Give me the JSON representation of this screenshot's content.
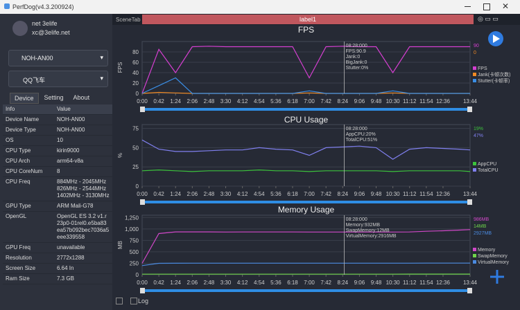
{
  "window": {
    "title": "PerfDog(v4.3.200924)"
  },
  "user": {
    "name": "net 3elife",
    "email": "xc@3elife.net"
  },
  "device": "NOH-AN00",
  "app": "QQ飞车",
  "tabs": [
    "Device",
    "Setting",
    "About"
  ],
  "table": {
    "header": [
      "Info",
      "Value"
    ],
    "rows": [
      [
        "Device Name",
        "NOH-AN00"
      ],
      [
        "Device Type",
        "NOH-AN00"
      ],
      [
        "OS",
        "10"
      ],
      [
        "CPU Type",
        "kirin9000"
      ],
      [
        "CPU Arch",
        "arm64-v8a"
      ],
      [
        "CPU CoreNum",
        "8"
      ],
      [
        "CPU Freq",
        "884MHz - 2045MHz 826MHz - 2544MHz 1402MHz - 3130MHz"
      ],
      [
        "GPU Type",
        "ARM Mali-G78"
      ],
      [
        "OpenGL",
        "OpenGL ES 3.2 v1.r23p0-01rel0.e5ba83ea57b092bec7036a5eee339558"
      ],
      [
        "GPU Freq",
        "unavailable"
      ],
      [
        "Resolution",
        "2772x1288"
      ],
      [
        "Screen Size",
        "6.64 In"
      ],
      [
        "Ram Size",
        "7.3 GB"
      ]
    ]
  },
  "scene": {
    "tab": "SceneTab",
    "label": "label1"
  },
  "log": "Log",
  "chart_data": [
    {
      "type": "line",
      "title": "FPS",
      "y_label": "FPS",
      "x": [
        0,
        42,
        84,
        126,
        168,
        210,
        252,
        294,
        336,
        378,
        420,
        462,
        504,
        546,
        588,
        630,
        672,
        714,
        756,
        798,
        824
      ],
      "xlim": [
        0,
        824
      ],
      "xticks": [
        {
          "value": 0,
          "label": "0:00"
        },
        {
          "value": 42,
          "label": "0:42"
        },
        {
          "value": 84,
          "label": "1:24"
        },
        {
          "value": 126,
          "label": "2:06"
        },
        {
          "value": 168,
          "label": "2:48"
        },
        {
          "value": 210,
          "label": "3:30"
        },
        {
          "value": 252,
          "label": "4:12"
        },
        {
          "value": 294,
          "label": "4:54"
        },
        {
          "value": 336,
          "label": "5:36"
        },
        {
          "value": 378,
          "label": "6:18"
        },
        {
          "value": 420,
          "label": "7:00"
        },
        {
          "value": 462,
          "label": "7:42"
        },
        {
          "value": 504,
          "label": "8:24"
        },
        {
          "value": 546,
          "label": "9:06"
        },
        {
          "value": 588,
          "label": "9:48"
        },
        {
          "value": 630,
          "label": "10:30"
        },
        {
          "value": 672,
          "label": "11:12"
        },
        {
          "value": 714,
          "label": "11:54"
        },
        {
          "value": 756,
          "label": "12:36"
        },
        {
          "value": 824,
          "label": "13:44"
        }
      ],
      "ylim": [
        0,
        100
      ],
      "yticks": [
        0,
        20,
        40,
        60,
        80
      ],
      "cursor_x": 508,
      "cursor_text": [
        "08:28:000",
        "FPS:90.9",
        "Jank:0",
        "BigJank:0",
        "Stutter:0%"
      ],
      "series": [
        {
          "name": "FPS",
          "color": "#d43fd0",
          "current_label": "90",
          "values": [
            0,
            85,
            40,
            90,
            91,
            90,
            90,
            90,
            90,
            90,
            30,
            90,
            91,
            90,
            90,
            40,
            90,
            90,
            90,
            90,
            90
          ]
        },
        {
          "name": "Jank(卡顿次数)",
          "color": "#f08a24",
          "current_label": "0",
          "values": [
            0,
            2,
            1,
            0,
            0,
            0,
            0,
            0,
            0,
            0,
            1,
            0,
            0,
            0,
            0,
            1,
            0,
            0,
            0,
            0,
            0
          ]
        },
        {
          "name": "Stutter(卡顿率)",
          "color": "#3a8ee6",
          "values": [
            0,
            15,
            30,
            0,
            0,
            0,
            0,
            0,
            0,
            0,
            5,
            0,
            0,
            0,
            0,
            5,
            0,
            0,
            0,
            0,
            0
          ]
        }
      ]
    },
    {
      "type": "line",
      "title": "CPU Usage",
      "y_label": "%",
      "x": [
        0,
        42,
        84,
        126,
        168,
        210,
        252,
        294,
        336,
        378,
        420,
        462,
        504,
        546,
        588,
        630,
        672,
        714,
        756,
        798,
        824
      ],
      "xlim": [
        0,
        824
      ],
      "xticks": [
        {
          "value": 0,
          "label": "0:00"
        },
        {
          "value": 42,
          "label": "0:42"
        },
        {
          "value": 84,
          "label": "1:24"
        },
        {
          "value": 126,
          "label": "2:06"
        },
        {
          "value": 168,
          "label": "2:48"
        },
        {
          "value": 210,
          "label": "3:30"
        },
        {
          "value": 252,
          "label": "4:12"
        },
        {
          "value": 294,
          "label": "4:54"
        },
        {
          "value": 336,
          "label": "5:36"
        },
        {
          "value": 378,
          "label": "6:18"
        },
        {
          "value": 420,
          "label": "7:00"
        },
        {
          "value": 462,
          "label": "7:42"
        },
        {
          "value": 504,
          "label": "8:24"
        },
        {
          "value": 546,
          "label": "9:06"
        },
        {
          "value": 588,
          "label": "9:48"
        },
        {
          "value": 630,
          "label": "10:30"
        },
        {
          "value": 672,
          "label": "11:12"
        },
        {
          "value": 714,
          "label": "11:54"
        },
        {
          "value": 756,
          "label": "12:36"
        },
        {
          "value": 824,
          "label": "13:44"
        }
      ],
      "ylim": [
        0,
        80
      ],
      "yticks": [
        0,
        25,
        50,
        75
      ],
      "cursor_x": 508,
      "cursor_text": [
        "08:28:000",
        "AppCPU:20%",
        "TotalCPU:51%"
      ],
      "series": [
        {
          "name": "AppCPU",
          "color": "#3cc43c",
          "current_label": "19%",
          "values": [
            20,
            21,
            20,
            19,
            20,
            20,
            20,
            21,
            20,
            20,
            19,
            20,
            20,
            20,
            20,
            19,
            20,
            20,
            20,
            20,
            19
          ]
        },
        {
          "name": "TotalCPU",
          "color": "#8080f0",
          "current_label": "47%",
          "values": [
            60,
            48,
            45,
            45,
            46,
            47,
            47,
            50,
            48,
            47,
            40,
            50,
            51,
            52,
            50,
            35,
            48,
            50,
            49,
            48,
            47
          ]
        }
      ]
    },
    {
      "type": "line",
      "title": "Memory Usage",
      "y_label": "MB",
      "x": [
        0,
        42,
        84,
        126,
        168,
        210,
        252,
        294,
        336,
        378,
        420,
        462,
        504,
        546,
        588,
        630,
        672,
        714,
        756,
        798,
        824
      ],
      "xlim": [
        0,
        824
      ],
      "xticks": [
        {
          "value": 0,
          "label": "0:00"
        },
        {
          "value": 42,
          "label": "0:42"
        },
        {
          "value": 84,
          "label": "1:24"
        },
        {
          "value": 126,
          "label": "2:06"
        },
        {
          "value": 168,
          "label": "2:48"
        },
        {
          "value": 210,
          "label": "3:30"
        },
        {
          "value": 252,
          "label": "4:12"
        },
        {
          "value": 294,
          "label": "4:54"
        },
        {
          "value": 336,
          "label": "5:36"
        },
        {
          "value": 378,
          "label": "6:18"
        },
        {
          "value": 420,
          "label": "7:00"
        },
        {
          "value": 462,
          "label": "7:42"
        },
        {
          "value": 504,
          "label": "8:24"
        },
        {
          "value": 546,
          "label": "9:06"
        },
        {
          "value": 588,
          "label": "9:48"
        },
        {
          "value": 630,
          "label": "10:30"
        },
        {
          "value": 672,
          "label": "11:12"
        },
        {
          "value": 714,
          "label": "11:54"
        },
        {
          "value": 756,
          "label": "12:36"
        },
        {
          "value": 824,
          "label": "13:44"
        }
      ],
      "ylim": [
        0,
        1300
      ],
      "yticks": [
        0,
        250,
        500,
        750,
        {
          "value": 1000,
          "label": "1,000"
        },
        {
          "value": 1250,
          "label": "1,250"
        }
      ],
      "y2lim": [
        0,
        15000
      ],
      "cursor_x": 508,
      "cursor_text": [
        "08:28:000",
        "Memory:932MB",
        "SwapMemory:12MB",
        "VirtualMemory:2916MB"
      ],
      "series": [
        {
          "name": "Memory",
          "color": "#d048c8",
          "current_label": "986MB",
          "values": [
            250,
            900,
            935,
            935,
            935,
            933,
            934,
            934,
            934,
            934,
            933,
            932,
            932,
            932,
            932,
            933,
            934,
            950,
            960,
            975,
            986
          ]
        },
        {
          "name": "SwapMemory",
          "color": "#6fd64a",
          "current_label": "14MB",
          "values": [
            12,
            12,
            12,
            12,
            12,
            12,
            12,
            12,
            12,
            12,
            12,
            12,
            12,
            12,
            12,
            12,
            13,
            13,
            13,
            14,
            14
          ]
        },
        {
          "name": "VirtualMemory",
          "color": "#4a8ae0",
          "current_label": "2927MB",
          "axis": "y2",
          "values": [
            2300,
            2880,
            2900,
            2905,
            2908,
            2910,
            2910,
            2912,
            2912,
            2914,
            2914,
            2915,
            2916,
            2916,
            2918,
            2918,
            2920,
            2922,
            2924,
            2926,
            2927
          ]
        }
      ]
    }
  ]
}
